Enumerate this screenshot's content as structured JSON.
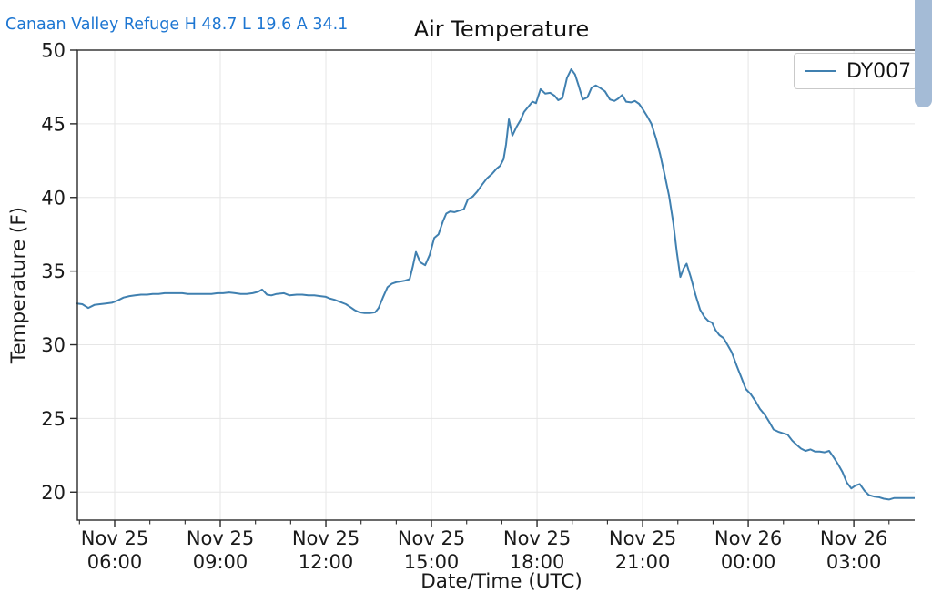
{
  "page": {
    "station_label": "Canaan Valley Refuge H 48.7 L 19.6 A 34.1",
    "title": "Air Temperature",
    "colors": {
      "station_label_text": "#1d76d2",
      "line": "#4080b0",
      "grid": "#e6e6e6",
      "axis": "#2b2b2b",
      "scrollbar_thumb": "#a4bbd6"
    }
  },
  "legend": {
    "position": "upper-right",
    "entries": [
      {
        "label": "DY007"
      }
    ]
  },
  "scrollbar": {
    "present": true
  },
  "chart_data": {
    "type": "line",
    "title": "Air Temperature",
    "xlabel": "Date/Time (UTC)",
    "ylabel": "Temperature (F)",
    "grid": true,
    "stats_shown": {
      "high": 48.7,
      "low": 19.6,
      "average": 34.1
    },
    "x_axis": {
      "unit": "decimal hours since Nov 25 00:00 UTC",
      "xlim_hours": [
        4.94,
        29.04
      ],
      "minor_tick_every_hours": 1,
      "major_ticks": [
        {
          "hour": 6,
          "line1": "Nov 25",
          "line2": "06:00"
        },
        {
          "hour": 9,
          "line1": "Nov 25",
          "line2": "09:00"
        },
        {
          "hour": 12,
          "line1": "Nov 25",
          "line2": "12:00"
        },
        {
          "hour": 15,
          "line1": "Nov 25",
          "line2": "15:00"
        },
        {
          "hour": 18,
          "line1": "Nov 25",
          "line2": "18:00"
        },
        {
          "hour": 21,
          "line1": "Nov 25",
          "line2": "21:00"
        },
        {
          "hour": 24,
          "line1": "Nov 26",
          "line2": "00:00"
        },
        {
          "hour": 27,
          "line1": "Nov 26",
          "line2": "03:00"
        }
      ]
    },
    "y_axis": {
      "ylim": [
        18.1,
        50
      ],
      "ticks": [
        50,
        45,
        40,
        35,
        30,
        25,
        20
      ]
    },
    "series": [
      {
        "name": "DY007",
        "points": [
          [
            4.93,
            32.8
          ],
          [
            5.08,
            32.75
          ],
          [
            5.25,
            32.5
          ],
          [
            5.42,
            32.7
          ],
          [
            5.58,
            32.75
          ],
          [
            5.75,
            32.8
          ],
          [
            5.92,
            32.85
          ],
          [
            6.08,
            33.0
          ],
          [
            6.25,
            33.2
          ],
          [
            6.42,
            33.3
          ],
          [
            6.58,
            33.35
          ],
          [
            6.75,
            33.4
          ],
          [
            6.92,
            33.4
          ],
          [
            7.08,
            33.45
          ],
          [
            7.25,
            33.45
          ],
          [
            7.42,
            33.5
          ],
          [
            7.58,
            33.5
          ],
          [
            7.75,
            33.5
          ],
          [
            7.92,
            33.5
          ],
          [
            8.08,
            33.45
          ],
          [
            8.25,
            33.45
          ],
          [
            8.42,
            33.45
          ],
          [
            8.58,
            33.45
          ],
          [
            8.75,
            33.45
          ],
          [
            8.92,
            33.5
          ],
          [
            9.08,
            33.5
          ],
          [
            9.25,
            33.55
          ],
          [
            9.42,
            33.5
          ],
          [
            9.58,
            33.45
          ],
          [
            9.75,
            33.45
          ],
          [
            9.92,
            33.5
          ],
          [
            10.08,
            33.6
          ],
          [
            10.19,
            33.75
          ],
          [
            10.33,
            33.4
          ],
          [
            10.45,
            33.35
          ],
          [
            10.6,
            33.45
          ],
          [
            10.81,
            33.5
          ],
          [
            10.97,
            33.35
          ],
          [
            11.17,
            33.4
          ],
          [
            11.33,
            33.4
          ],
          [
            11.5,
            33.35
          ],
          [
            11.67,
            33.35
          ],
          [
            11.84,
            33.3
          ],
          [
            12.0,
            33.25
          ],
          [
            12.1,
            33.15
          ],
          [
            12.25,
            33.05
          ],
          [
            12.36,
            32.95
          ],
          [
            12.57,
            32.75
          ],
          [
            12.7,
            32.55
          ],
          [
            12.82,
            32.35
          ],
          [
            12.95,
            32.2
          ],
          [
            13.1,
            32.15
          ],
          [
            13.25,
            32.15
          ],
          [
            13.4,
            32.2
          ],
          [
            13.5,
            32.5
          ],
          [
            13.62,
            33.2
          ],
          [
            13.75,
            33.9
          ],
          [
            13.88,
            34.15
          ],
          [
            14.0,
            34.25
          ],
          [
            14.13,
            34.3
          ],
          [
            14.25,
            34.35
          ],
          [
            14.38,
            34.45
          ],
          [
            14.47,
            35.3
          ],
          [
            14.56,
            36.3
          ],
          [
            14.68,
            35.6
          ],
          [
            14.82,
            35.4
          ],
          [
            14.95,
            36.1
          ],
          [
            15.08,
            37.25
          ],
          [
            15.2,
            37.5
          ],
          [
            15.33,
            38.4
          ],
          [
            15.42,
            38.9
          ],
          [
            15.53,
            39.05
          ],
          [
            15.65,
            39.0
          ],
          [
            15.78,
            39.1
          ],
          [
            15.92,
            39.2
          ],
          [
            16.03,
            39.85
          ],
          [
            16.17,
            40.05
          ],
          [
            16.3,
            40.4
          ],
          [
            16.45,
            40.9
          ],
          [
            16.58,
            41.3
          ],
          [
            16.72,
            41.6
          ],
          [
            16.85,
            41.95
          ],
          [
            16.95,
            42.15
          ],
          [
            17.05,
            42.6
          ],
          [
            17.12,
            43.6
          ],
          [
            17.2,
            45.3
          ],
          [
            17.3,
            44.2
          ],
          [
            17.42,
            44.8
          ],
          [
            17.53,
            45.25
          ],
          [
            17.63,
            45.8
          ],
          [
            17.75,
            46.15
          ],
          [
            17.87,
            46.5
          ],
          [
            17.97,
            46.4
          ],
          [
            18.1,
            47.35
          ],
          [
            18.23,
            47.05
          ],
          [
            18.37,
            47.1
          ],
          [
            18.5,
            46.9
          ],
          [
            18.6,
            46.6
          ],
          [
            18.72,
            46.75
          ],
          [
            18.85,
            48.1
          ],
          [
            18.97,
            48.7
          ],
          [
            19.08,
            48.35
          ],
          [
            19.18,
            47.6
          ],
          [
            19.3,
            46.65
          ],
          [
            19.43,
            46.8
          ],
          [
            19.55,
            47.45
          ],
          [
            19.67,
            47.6
          ],
          [
            19.78,
            47.45
          ],
          [
            19.93,
            47.2
          ],
          [
            20.07,
            46.65
          ],
          [
            20.2,
            46.55
          ],
          [
            20.3,
            46.7
          ],
          [
            20.42,
            46.95
          ],
          [
            20.53,
            46.5
          ],
          [
            20.67,
            46.45
          ],
          [
            20.78,
            46.55
          ],
          [
            20.9,
            46.35
          ],
          [
            21.0,
            46.0
          ],
          [
            21.12,
            45.55
          ],
          [
            21.25,
            45.0
          ],
          [
            21.38,
            44.0
          ],
          [
            21.5,
            42.9
          ],
          [
            21.63,
            41.5
          ],
          [
            21.75,
            40.1
          ],
          [
            21.87,
            38.3
          ],
          [
            21.97,
            36.3
          ],
          [
            22.07,
            34.6
          ],
          [
            22.17,
            35.2
          ],
          [
            22.25,
            35.5
          ],
          [
            22.38,
            34.5
          ],
          [
            22.5,
            33.4
          ],
          [
            22.63,
            32.4
          ],
          [
            22.75,
            31.9
          ],
          [
            22.87,
            31.6
          ],
          [
            22.97,
            31.5
          ],
          [
            23.07,
            31.0
          ],
          [
            23.18,
            30.65
          ],
          [
            23.3,
            30.45
          ],
          [
            23.42,
            29.95
          ],
          [
            23.53,
            29.5
          ],
          [
            23.67,
            28.6
          ],
          [
            23.8,
            27.8
          ],
          [
            23.93,
            27.0
          ],
          [
            24.07,
            26.65
          ],
          [
            24.2,
            26.2
          ],
          [
            24.33,
            25.65
          ],
          [
            24.47,
            25.25
          ],
          [
            24.6,
            24.75
          ],
          [
            24.72,
            24.25
          ],
          [
            24.85,
            24.1
          ],
          [
            24.98,
            24.0
          ],
          [
            25.12,
            23.9
          ],
          [
            25.25,
            23.5
          ],
          [
            25.38,
            23.2
          ],
          [
            25.5,
            22.95
          ],
          [
            25.63,
            22.8
          ],
          [
            25.77,
            22.9
          ],
          [
            25.9,
            22.75
          ],
          [
            26.03,
            22.75
          ],
          [
            26.17,
            22.7
          ],
          [
            26.3,
            22.8
          ],
          [
            26.43,
            22.35
          ],
          [
            26.55,
            21.9
          ],
          [
            26.68,
            21.35
          ],
          [
            26.8,
            20.65
          ],
          [
            26.93,
            20.25
          ],
          [
            27.05,
            20.45
          ],
          [
            27.17,
            20.55
          ],
          [
            27.3,
            20.1
          ],
          [
            27.43,
            19.8
          ],
          [
            27.57,
            19.7
          ],
          [
            27.72,
            19.65
          ],
          [
            27.85,
            19.55
          ],
          [
            28.0,
            19.5
          ],
          [
            28.15,
            19.6
          ],
          [
            28.33,
            19.6
          ],
          [
            28.5,
            19.6
          ],
          [
            28.67,
            19.6
          ],
          [
            28.83,
            19.6
          ],
          [
            29.0,
            19.6
          ]
        ]
      }
    ]
  }
}
